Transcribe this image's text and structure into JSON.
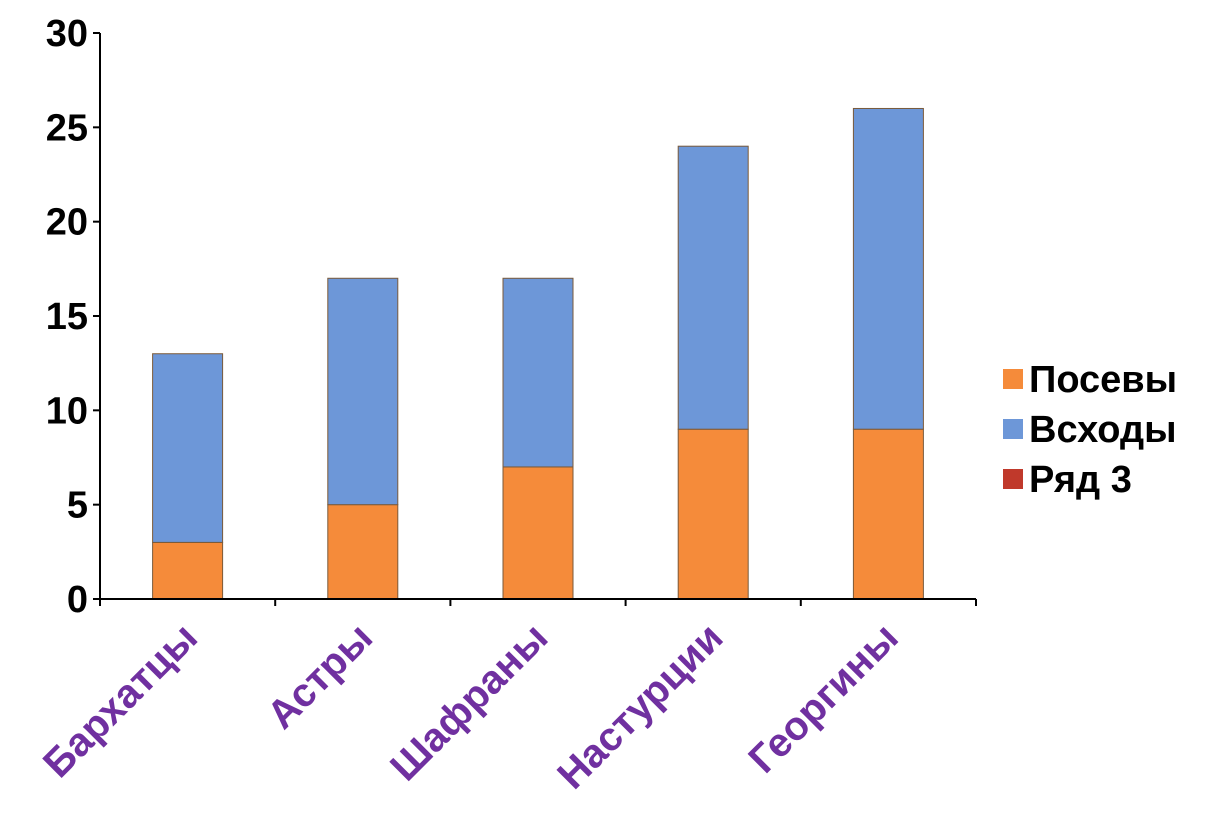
{
  "chart_data": {
    "type": "bar",
    "stacked": true,
    "categories": [
      "Бархатцы",
      "Астры",
      "Шафраны",
      "Настурции",
      "Георгины"
    ],
    "series": [
      {
        "name": "Посевы",
        "values": [
          3,
          5,
          7,
          9,
          9
        ],
        "color": "#f58b3a"
      },
      {
        "name": "Всходы",
        "values": [
          10,
          12,
          10,
          15,
          17
        ],
        "color": "#6d97d8"
      },
      {
        "name": "Ряд 3",
        "values": [
          0,
          0,
          0,
          0,
          0
        ],
        "color": "#c0392b"
      }
    ],
    "ylim": [
      0,
      30
    ],
    "yticks": [
      "0",
      "5",
      "10",
      "15",
      "20",
      "25",
      "30"
    ],
    "title": "",
    "xlabel": "",
    "ylabel": "",
    "grid": false,
    "legend_position": "right",
    "category_label_color": "#7030a0",
    "axis_color": "#000000"
  }
}
